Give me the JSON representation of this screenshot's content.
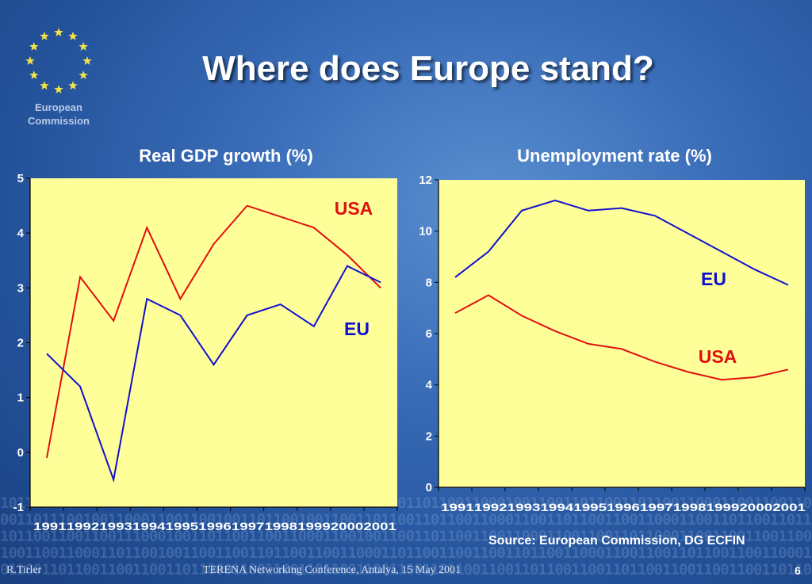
{
  "header": {
    "title": "Where does Europe stand?",
    "logo_text": [
      "European",
      "Commission"
    ]
  },
  "footer": {
    "author": "R.Tirler",
    "event": "TERENA Networking Conference, Antalya, 15 May 2001",
    "page": "6"
  },
  "colors": {
    "usa": "#e01010",
    "eu": "#1010d0",
    "plot_bg": "#ffff99"
  },
  "chart_data": [
    {
      "type": "line",
      "title": "Real GDP growth (%)",
      "x": [
        "1991",
        "1992",
        "1993",
        "1994",
        "1995",
        "1996",
        "1997",
        "1998",
        "1999",
        "2000",
        "2001"
      ],
      "ylim": [
        -1,
        5
      ],
      "yticks": [
        "-1",
        "0",
        "1",
        "2",
        "3",
        "4",
        "5"
      ],
      "series": [
        {
          "name": "USA",
          "values": [
            -0.1,
            3.2,
            2.4,
            4.1,
            2.8,
            3.8,
            4.5,
            4.3,
            4.1,
            3.6,
            3.0
          ]
        },
        {
          "name": "EU",
          "values": [
            1.8,
            1.2,
            -0.5,
            2.8,
            2.5,
            1.6,
            2.5,
            2.7,
            2.3,
            3.4,
            3.1
          ]
        }
      ]
    },
    {
      "type": "line",
      "title": "Unemployment rate (%)",
      "x": [
        "1991",
        "1992",
        "1993",
        "1994",
        "1995",
        "1996",
        "1997",
        "1998",
        "1999",
        "2000",
        "2001"
      ],
      "ylim": [
        0,
        12
      ],
      "yticks": [
        "0",
        "2",
        "4",
        "6",
        "8",
        "10",
        "12"
      ],
      "series": [
        {
          "name": "EU",
          "values": [
            8.2,
            9.2,
            10.8,
            11.2,
            10.8,
            10.9,
            10.6,
            9.9,
            9.2,
            8.5,
            7.9
          ]
        },
        {
          "name": "USA",
          "values": [
            6.8,
            7.5,
            6.7,
            6.1,
            5.6,
            5.4,
            4.9,
            4.5,
            4.2,
            4.3,
            4.6
          ]
        }
      ],
      "source": "Source: European Commission, DG ECFIN"
    }
  ]
}
